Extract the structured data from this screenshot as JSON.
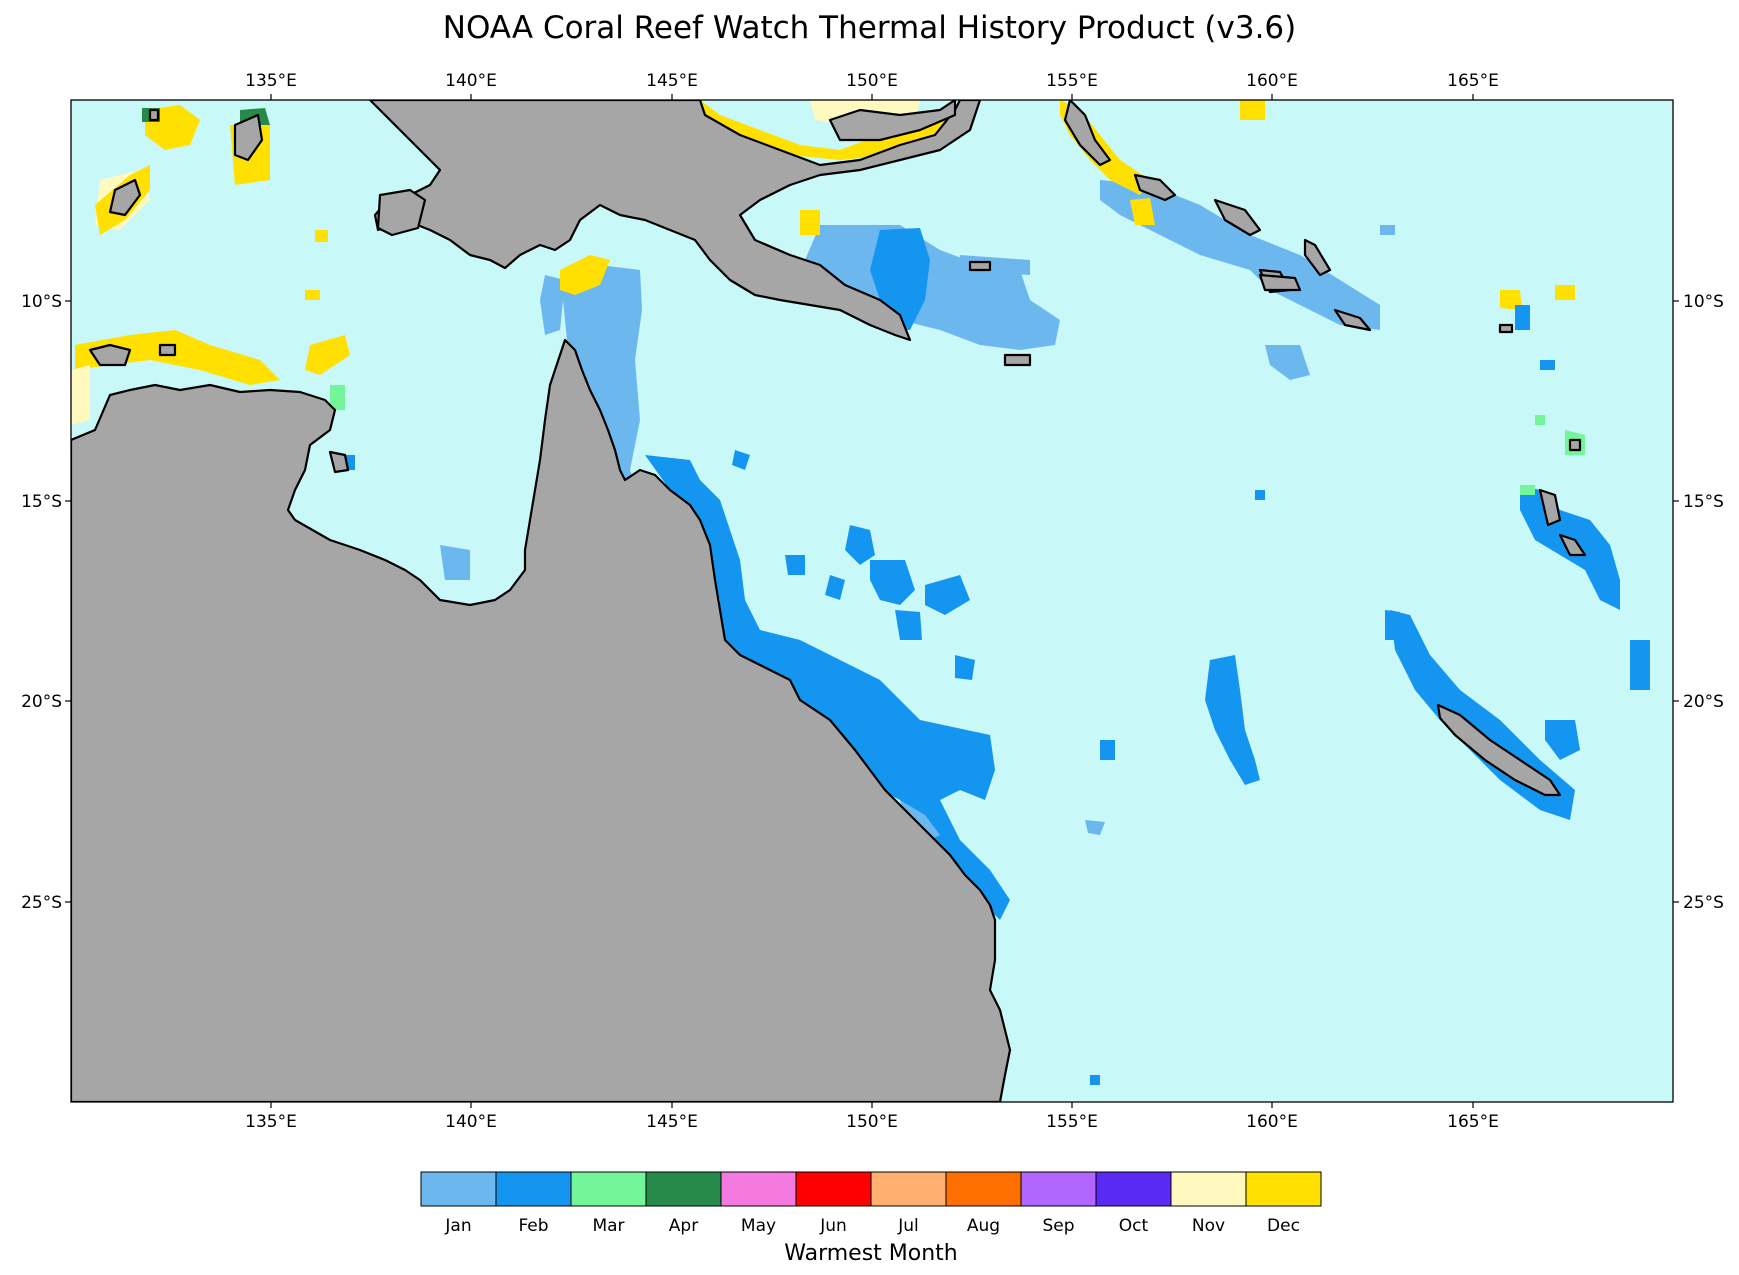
{
  "title": "NOAA Coral Reef Watch Thermal History Product (v3.6)",
  "map": {
    "lon_range": [
      130,
      170
    ],
    "lat_range": [
      -30,
      -5
    ],
    "ocean_color": "#c8f8f8",
    "land_color": "#a6a6a6",
    "lon_ticks": [
      "135°E",
      "140°E",
      "145°E",
      "150°E",
      "155°E",
      "160°E",
      "165°E"
    ],
    "lat_ticks": [
      "10°S",
      "15°S",
      "20°S",
      "25°S"
    ]
  },
  "colorbar": {
    "title": "Warmest Month",
    "months": [
      {
        "label": "Jan",
        "color": "#6cb8ee"
      },
      {
        "label": "Feb",
        "color": "#1496f0"
      },
      {
        "label": "Mar",
        "color": "#73f59a"
      },
      {
        "label": "Apr",
        "color": "#288a4a"
      },
      {
        "label": "May",
        "color": "#f57ae0"
      },
      {
        "label": "Jun",
        "color": "#ff0000"
      },
      {
        "label": "Jul",
        "color": "#ffb070"
      },
      {
        "label": "Aug",
        "color": "#ff6e00"
      },
      {
        "label": "Sep",
        "color": "#b066ff"
      },
      {
        "label": "Oct",
        "color": "#5a2af5"
      },
      {
        "label": "Nov",
        "color": "#fff9c0"
      },
      {
        "label": "Dec",
        "color": "#ffe000"
      }
    ]
  }
}
